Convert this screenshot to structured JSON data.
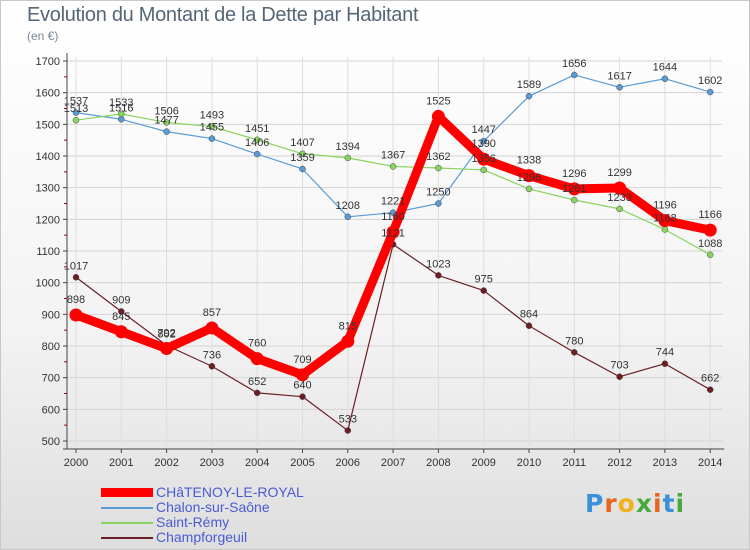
{
  "title": "Evolution du Montant de la Dette par Habitant",
  "unit_label": "(en €)",
  "brand": {
    "letters": [
      "P",
      "r",
      "o",
      "x",
      "i",
      "t",
      "i"
    ],
    "colors": [
      "#3a8fd8",
      "#e8641f",
      "#f2b21c",
      "#49a93d",
      "#e8641f",
      "#3a8fd8",
      "#49a93d"
    ]
  },
  "chart_data": {
    "type": "line",
    "categories": [
      "2000",
      "2001",
      "2002",
      "2003",
      "2004",
      "2005",
      "2006",
      "2007",
      "2008",
      "2009",
      "2010",
      "2011",
      "2012",
      "2013",
      "2014"
    ],
    "ylim": [
      500,
      1700
    ],
    "yticks": [
      "500",
      "600",
      "700",
      "800",
      "900",
      "1000",
      "1100",
      "1200",
      "1300",
      "1400",
      "1500",
      "1600",
      "1700"
    ],
    "grid": true,
    "legend_position": "bottom-left",
    "series": [
      {
        "name": "Chalon-sur-Saône",
        "color": "#5b9bd5",
        "values": [
          1537,
          1516,
          1477,
          1455,
          1406,
          1359,
          1208,
          1221,
          1250,
          1447,
          1589,
          1656,
          1617,
          1644,
          1602
        ]
      },
      {
        "name": "Saint-Rémy",
        "color": "#88d45f",
        "values": [
          1513,
          1533,
          1506,
          1493,
          1451,
          1407,
          1394,
          1367,
          1362,
          1356,
          1296,
          1261,
          1233,
          1168,
          1088
        ]
      },
      {
        "name": "Champforgeuil",
        "color": "#6b1f24",
        "values": [
          1017,
          909,
          802,
          736,
          652,
          640,
          533,
          1121,
          1023,
          975,
          864,
          780,
          703,
          744,
          662
        ]
      },
      {
        "name": "CHâTENOY-LE-ROYAL",
        "color": "#ff0000",
        "values": [
          898,
          845,
          792,
          857,
          760,
          709,
          815,
          1160,
          1525,
          1390,
          1338,
          1296,
          1299,
          1196,
          1166
        ]
      }
    ],
    "legend_order": [
      "CHâTENOY-LE-ROYAL",
      "Chalon-sur-Saône",
      "Saint-Rémy",
      "Champforgeuil"
    ]
  }
}
